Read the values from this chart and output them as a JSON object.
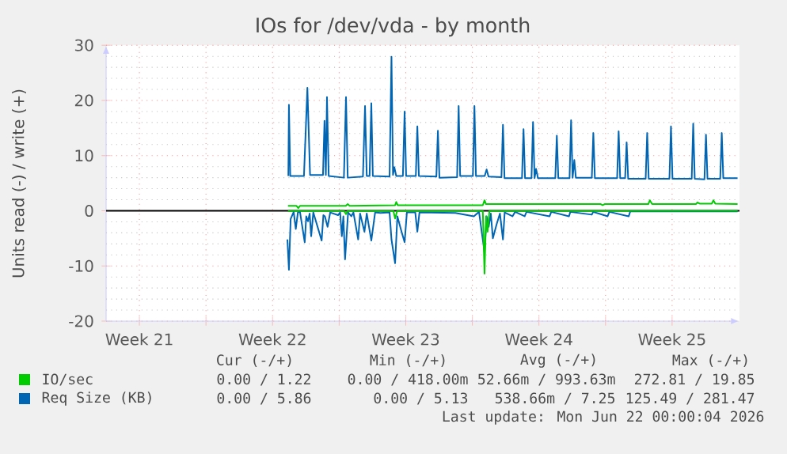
{
  "chart_data": {
    "type": "line",
    "title": "IOs for /dev/vda - by month",
    "ylabel": "Units read (-) / write (+)",
    "xlim": [
      "2026-05-19T18:00",
      "2026-06-22T01:00"
    ],
    "ylim": [
      -20,
      30
    ],
    "yticks": [
      -20,
      -10,
      0,
      10,
      20,
      30
    ],
    "xticks": [
      {
        "value": "2026-05-21T12:00",
        "label": "Week 21"
      },
      {
        "value": "2026-05-25",
        "label": null
      },
      {
        "value": "2026-05-28T12:00",
        "label": "Week 22"
      },
      {
        "value": "2026-06-01",
        "label": null
      },
      {
        "value": "2026-06-04T12:00",
        "label": "Week 23"
      },
      {
        "value": "2026-06-08",
        "label": null
      },
      {
        "value": "2026-06-11T12:00",
        "label": "Week 24"
      },
      {
        "value": "2026-06-15",
        "label": null
      },
      {
        "value": "2026-06-18T12:00",
        "label": "Week 25"
      }
    ],
    "grid": true,
    "legend": "bottom",
    "marker": "none",
    "line_style": "solid",
    "ref_lines": [
      {
        "axis": "y",
        "value": 0,
        "color": "#000000"
      }
    ],
    "series": [
      {
        "name": "Req Size (KB)",
        "color": "#0066b3",
        "x": [
          "2026-05-29T07:55",
          "2026-05-29T08:38",
          "2026-05-29T10:19",
          "2026-05-30T03:36",
          "2026-05-30T07:55",
          "2026-05-30T11:17",
          "2026-05-31T03:36",
          "2026-05-31T05:31",
          "2026-05-31T07:12",
          "2026-05-31T08:38",
          "2026-05-31T10:48",
          "2026-06-01T06:00",
          "2026-06-01T08:38",
          "2026-06-01T10:48",
          "2026-06-02T06:00",
          "2026-06-02T08:38",
          "2026-06-02T10:48",
          "2026-06-02T14:24",
          "2026-06-02T16:34",
          "2026-06-02T18:29",
          "2026-06-03T15:36",
          "2026-06-03T18:00",
          "2026-06-03T19:55",
          "2026-06-03T21:36",
          "2026-06-04T00:00",
          "2026-06-04T08:24",
          "2026-06-04T10:34",
          "2026-06-04T12:29",
          "2026-06-05T00:43",
          "2026-06-05T02:38",
          "2026-06-05T04:34",
          "2026-06-06T02:38",
          "2026-06-06T04:34",
          "2026-06-06T06:29",
          "2026-06-07T04:48",
          "2026-06-07T06:43",
          "2026-06-07T08:38",
          "2026-06-08T00:43",
          "2026-06-08T02:38",
          "2026-06-08T04:34",
          "2026-06-08T15:36",
          "2026-06-08T18:00",
          "2026-06-08T20:24",
          "2026-06-09T12:43",
          "2026-06-09T14:38",
          "2026-06-09T16:34",
          "2026-06-10T14:38",
          "2026-06-10T16:34",
          "2026-06-10T18:29",
          "2026-06-11T02:38",
          "2026-06-11T04:34",
          "2026-06-11T06:29",
          "2026-06-11T08:24",
          "2026-06-11T10:48",
          "2026-06-12T08:38",
          "2026-06-12T10:34",
          "2026-06-12T12:29",
          "2026-06-13T02:38",
          "2026-06-13T04:34",
          "2026-06-13T06:29",
          "2026-06-13T08:38",
          "2026-06-13T10:34",
          "2026-06-14T06:43",
          "2026-06-14T08:38",
          "2026-06-14T10:34",
          "2026-06-15T14:38",
          "2026-06-15T16:34",
          "2026-06-15T18:29",
          "2026-06-16T00:43",
          "2026-06-16T02:38",
          "2026-06-16T04:34",
          "2026-06-17T02:38",
          "2026-06-17T04:34",
          "2026-06-17T06:29",
          "2026-06-18T08:38",
          "2026-06-18T10:34",
          "2026-06-18T12:29",
          "2026-06-19T12:43",
          "2026-06-19T14:38",
          "2026-06-19T16:34",
          "2026-06-20T04:48",
          "2026-06-20T06:43",
          "2026-06-20T08:38",
          "2026-06-21T00:43",
          "2026-06-21T02:38",
          "2026-06-21T04:34",
          "2026-06-21T22:34"
        ],
        "values": [
          6.3,
          19.2,
          6.3,
          6.3,
          22.3,
          6.5,
          6.5,
          16.3,
          6.5,
          20.6,
          6.3,
          6.0,
          20.6,
          6.0,
          6.2,
          19.0,
          6.3,
          6.3,
          19.5,
          6.3,
          6.2,
          27.9,
          6.5,
          7.9,
          6.3,
          6.3,
          18.0,
          6.3,
          6.3,
          15.3,
          6.3,
          6.2,
          14.5,
          6.0,
          6.1,
          19.0,
          6.3,
          6.3,
          19.0,
          6.3,
          6.3,
          7.5,
          6.2,
          6.1,
          15.6,
          5.9,
          5.9,
          14.8,
          5.9,
          5.9,
          16.1,
          5.9,
          7.6,
          5.9,
          5.9,
          13.6,
          5.9,
          5.9,
          16.4,
          6.0,
          9.2,
          6.0,
          6.0,
          14.1,
          5.9,
          5.9,
          14.4,
          5.9,
          5.9,
          12.4,
          5.8,
          5.8,
          14.1,
          5.8,
          5.8,
          15.3,
          5.8,
          5.8,
          15.8,
          5.8,
          5.7,
          13.8,
          5.8,
          5.8,
          14.1,
          5.9,
          5.9
        ]
      },
      {
        "color": "#0066b3",
        "x": [
          "2026-05-29T06:43",
          "2026-05-29T08:38",
          "2026-05-29T10:48",
          "2026-05-29T14:38",
          "2026-05-29T17:17",
          "2026-05-29T19:55",
          "2026-05-29T22:34",
          "2026-05-30T04:34",
          "2026-05-30T06:29",
          "2026-05-30T08:38",
          "2026-05-30T10:48",
          "2026-05-30T12:43",
          "2026-05-30T15:22",
          "2026-05-31T01:55",
          "2026-05-31T04:05",
          "2026-05-31T06:00",
          "2026-05-31T09:22",
          "2026-05-31T12:43",
          "2026-05-31T22:34",
          "2026-06-01T01:12",
          "2026-06-01T03:22",
          "2026-06-01T05:17",
          "2026-06-01T07:26",
          "2026-06-01T11:17",
          "2026-06-01T15:22",
          "2026-06-01T18:00",
          "2026-06-02T00:00",
          "2026-06-02T02:24",
          "2026-06-02T07:55",
          "2026-06-02T10:48",
          "2026-06-02T16:34",
          "2026-06-02T21:22",
          "2026-06-03T04:05",
          "2026-06-03T15:36",
          "2026-06-03T18:00",
          "2026-06-03T22:34",
          "2026-06-04T01:26",
          "2026-06-04T06:43",
          "2026-06-04T10:34",
          "2026-06-04T13:26",
          "2026-06-05T00:00",
          "2026-06-05T02:38",
          "2026-06-05T05:17",
          "2026-06-07T02:38",
          "2026-06-08T01:55",
          "2026-06-08T08:24",
          "2026-06-08T15:22",
          "2026-06-08T18:00",
          "2026-06-08T20:38",
          "2026-06-08T23:17",
          "2026-06-09T01:55",
          "2026-06-09T06:43",
          "2026-06-09T10:48",
          "2026-06-09T14:38",
          "2026-06-09T16:48",
          "2026-06-10T02:38",
          "2026-06-10T06:00",
          "2026-06-10T18:00",
          "2026-06-10T20:24",
          "2026-06-12T01:26",
          "2026-06-12T03:36",
          "2026-06-13T01:55",
          "2026-06-13T03:36",
          "2026-06-14T06:43",
          "2026-06-14T08:24",
          "2026-06-15T02:38",
          "2026-06-15T04:48",
          "2026-06-16T05:17",
          "2026-06-16T07:12",
          "2026-06-21T22:34"
        ],
        "values": [
          -5.2,
          -10.7,
          -1.5,
          -0.2,
          -3.3,
          -0.3,
          -0.2,
          -5.7,
          -1.0,
          -1.9,
          -0.5,
          -4.6,
          -0.3,
          -5.4,
          -0.8,
          -1.0,
          -2.9,
          -0.3,
          -0.8,
          -0.3,
          -4.6,
          -1.0,
          -8.8,
          -0.3,
          -1.0,
          -0.3,
          -5.2,
          -0.5,
          -3.8,
          -0.5,
          -5.4,
          -0.3,
          -0.4,
          -0.3,
          -5.2,
          -9.5,
          -1.0,
          -3.8,
          -5.7,
          -0.3,
          -0.3,
          -3.8,
          -0.3,
          -0.4,
          -1.0,
          -0.2,
          -7.5,
          -1.0,
          -2.9,
          -0.5,
          -5.0,
          -2.4,
          -0.5,
          -5.2,
          -0.3,
          -1.0,
          -0.2,
          -1.0,
          -0.2,
          -1.0,
          -0.2,
          -1.0,
          -0.2,
          -0.7,
          -0.2,
          -1.0,
          -0.2,
          -1.0,
          -0.1,
          -0.1
        ]
      },
      {
        "name": "IO/sec",
        "color": "#00cc00",
        "x": [
          "2026-05-29T07:26",
          "2026-05-29T18:00",
          "2026-05-29T20:24",
          "2026-05-29T22:48",
          "2026-06-01T08:24",
          "2026-06-01T10:48",
          "2026-06-01T13:12",
          "2026-06-03T22:34",
          "2026-06-04T00:00",
          "2026-06-04T01:55",
          "2026-06-06T18:00",
          "2026-06-08T13:12",
          "2026-06-08T15:22",
          "2026-06-08T17:17",
          "2026-06-14T18:00",
          "2026-06-14T20:24",
          "2026-06-14T22:48",
          "2026-06-17T06:00",
          "2026-06-17T07:55",
          "2026-06-17T10:48",
          "2026-06-19T18:00",
          "2026-06-19T19:55",
          "2026-06-19T22:48",
          "2026-06-20T14:10",
          "2026-06-20T16:05",
          "2026-06-20T18:29",
          "2026-06-21T22:34"
        ],
        "values": [
          0.9,
          0.9,
          0.5,
          0.9,
          0.9,
          1.2,
          0.9,
          1.0,
          1.6,
          1.0,
          1.0,
          1.0,
          1.9,
          1.2,
          1.2,
          1.0,
          1.2,
          1.2,
          1.9,
          1.2,
          1.2,
          1.5,
          1.3,
          1.3,
          1.9,
          1.3,
          1.2
        ]
      },
      {
        "color": "#00cc00",
        "x": [
          "2026-05-29T07:26",
          "2026-06-01T06:00",
          "2026-06-01T08:38",
          "2026-06-01T10:48",
          "2026-06-03T20:24",
          "2026-06-03T22:34",
          "2026-06-04T01:12",
          "2026-06-08T13:12",
          "2026-06-08T15:22",
          "2026-06-08T17:17",
          "2026-06-08T19:12",
          "2026-06-08T21:36",
          "2026-06-21T22:34"
        ],
        "values": [
          0,
          0,
          -0.6,
          0,
          0,
          -1.4,
          0,
          0,
          -11.4,
          -1.0,
          -3.8,
          0,
          0
        ]
      }
    ],
    "annotations": [
      "Cur (-/+)",
      "Min (-/+)",
      "Avg (-/+)",
      "Max (-/+)",
      "0.00 / 1.22",
      "0.00 / 418.00m",
      "52.66m / 993.63m",
      "272.81 / 19.85",
      "0.00 / 5.86",
      "0.00 / 5.13",
      "538.66m / 7.25",
      "125.49 / 281.47",
      "Last update: Mon Jun 22 00:00:04 2026"
    ]
  }
}
